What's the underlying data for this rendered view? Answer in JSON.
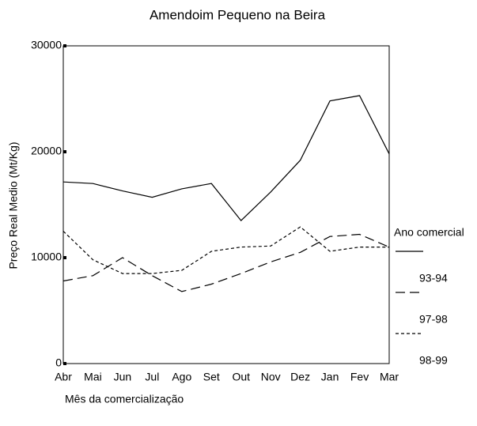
{
  "chart_data": {
    "type": "line",
    "title": "Amendoim Pequeno na Beira",
    "x_label": "Mês da comercialização",
    "y_label": "Preço Real Medio (Mt/Kg)",
    "legend_title": "Ano comercial",
    "legend": "right",
    "grid": false,
    "categories": [
      "Abr",
      "Mai",
      "Jun",
      "Jul",
      "Ago",
      "Set",
      "Out",
      "Nov",
      "Dez",
      "Jan",
      "Fev",
      "Mar"
    ],
    "series": [
      {
        "name": "93-94",
        "color": "#000000",
        "line_style": "solid",
        "values": [
          17150,
          17000,
          16300,
          15700,
          16500,
          17000,
          13500,
          16200,
          19200,
          24800,
          25300,
          19800
        ]
      },
      {
        "name": "97-98",
        "color": "#000000",
        "line_style": "dashed",
        "values": [
          7800,
          8300,
          10000,
          8300,
          6800,
          7500,
          8500,
          9600,
          10500,
          12000,
          12200,
          11000
        ]
      },
      {
        "name": "98-99",
        "color": "#000000",
        "line_style": "dotted",
        "values": [
          12500,
          9800,
          8500,
          8500,
          8800,
          10600,
          11000,
          11100,
          12900,
          10600,
          11000,
          11000
        ]
      }
    ],
    "ylim": [
      0,
      30000
    ],
    "yticks": [
      0,
      10000,
      20000,
      30000
    ]
  }
}
